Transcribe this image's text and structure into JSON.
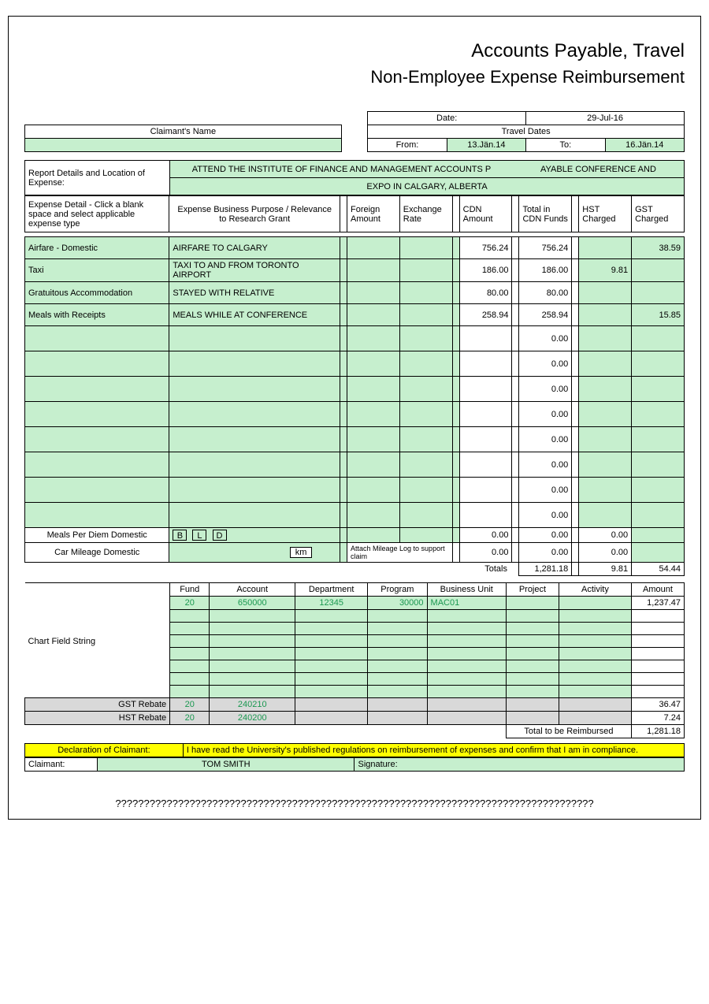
{
  "title1": "Accounts Payable, Travel",
  "title2": "Non-Employee Expense Reimbursement",
  "date_label": "Date:",
  "date_value": "29-Jul-16",
  "claimant_name_label": "Claimant's Name",
  "travel_dates_label": "Travel Dates",
  "from_label": "From:",
  "from_value": "13.Jän.14",
  "to_label": "To:",
  "to_value": "16.Jän.14",
  "report_details_label": "Report Details and Location of Expense:",
  "report_details_value_a": "ATTEND THE INSTITUTE OF FINANCE AND MANAGEMENT ACCOUNTS P",
  "report_details_value_b": "AYABLE CONFERENCE AND",
  "report_details_value_c": "EXPO IN CALGARY, ALBERTA",
  "cols": {
    "detail": "Expense Detail - Click a blank space and select applicable expense type",
    "purpose": "Expense Business Purpose / Relevance to Research Grant",
    "foreign": "Foreign Amount",
    "rate": "Exchange Rate",
    "cdn": "CDN Amount",
    "totalcdn": "Total in CDN Funds",
    "hst": "HST Charged",
    "gst": "GST Charged"
  },
  "rows": [
    {
      "detail": "Airfare - Domestic",
      "purpose": "AIRFARE TO CALGARY",
      "cdn": "756.24",
      "total": "756.24",
      "hst": "",
      "gst": "38.59"
    },
    {
      "detail": "Taxi",
      "purpose": "TAXI TO AND FROM TORONTO AIRPORT",
      "cdn": "186.00",
      "total": "186.00",
      "hst": "9.81",
      "gst": ""
    },
    {
      "detail": "Gratuitous Accommodation",
      "purpose": "STAYED WITH RELATIVE",
      "cdn": "80.00",
      "total": "80.00",
      "hst": "",
      "gst": ""
    },
    {
      "detail": "Meals with Receipts",
      "purpose": "MEALS WHILE AT CONFERENCE",
      "cdn": "258.94",
      "total": "258.94",
      "hst": "",
      "gst": "15.85"
    },
    {
      "detail": "",
      "purpose": "",
      "cdn": "",
      "total": "0.00",
      "hst": "",
      "gst": ""
    },
    {
      "detail": "",
      "purpose": "",
      "cdn": "",
      "total": "0.00",
      "hst": "",
      "gst": ""
    },
    {
      "detail": "",
      "purpose": "",
      "cdn": "",
      "total": "0.00",
      "hst": "",
      "gst": ""
    },
    {
      "detail": "",
      "purpose": "",
      "cdn": "",
      "total": "0.00",
      "hst": "",
      "gst": ""
    },
    {
      "detail": "",
      "purpose": "",
      "cdn": "",
      "total": "0.00",
      "hst": "",
      "gst": ""
    },
    {
      "detail": "",
      "purpose": "",
      "cdn": "",
      "total": "0.00",
      "hst": "",
      "gst": ""
    },
    {
      "detail": "",
      "purpose": "",
      "cdn": "",
      "total": "0.00",
      "hst": "",
      "gst": ""
    },
    {
      "detail": "",
      "purpose": "",
      "cdn": "",
      "total": "0.00",
      "hst": "",
      "gst": ""
    }
  ],
  "perdiem": {
    "label": "Meals Per Diem Domestic",
    "b": "B",
    "l": "L",
    "d": "D",
    "cdn": "0.00",
    "total": "0.00",
    "hst": "0.00"
  },
  "mileage": {
    "label": "Car Mileage Domestic",
    "km": "km",
    "note": "Attach Mileage Log to support claim",
    "cdn": "0.00",
    "total": "0.00",
    "hst": "0.00"
  },
  "totals": {
    "label": "Totals",
    "total": "1,281.18",
    "hst": "9.81",
    "gst": "54.44"
  },
  "cfs": {
    "label": "Chart Field String",
    "headers": [
      "Fund",
      "Account",
      "Department",
      "Program",
      "Business Unit",
      "Project",
      "Activity",
      "Amount"
    ],
    "green_row": {
      "fund": "20",
      "account": "650000",
      "dept": "12345",
      "prog": "30000",
      "bu": "MAC01",
      "proj": "",
      "activity": "",
      "amount": "1,237.47"
    },
    "blank_rows": 7,
    "gst_rebate": {
      "label": "GST Rebate",
      "fund": "20",
      "account": "240210",
      "amount": "36.47"
    },
    "hst_rebate": {
      "label": "HST Rebate",
      "fund": "20",
      "account": "240200",
      "amount": "7.24"
    },
    "total_reimbursed_label": "Total to be Reimbursed",
    "total_reimbursed": "1,281.18"
  },
  "declaration_label": "Declaration of Claimant:",
  "declaration_text": "I have read the University's published regulations on reimbursement of expenses and confirm that I am in compliance.",
  "claimant_label": "Claimant:",
  "claimant_name": "TOM SMITH",
  "signature_label": "Signature:",
  "footer": "????????????????????????????????????????????????????????????????????????????????????"
}
